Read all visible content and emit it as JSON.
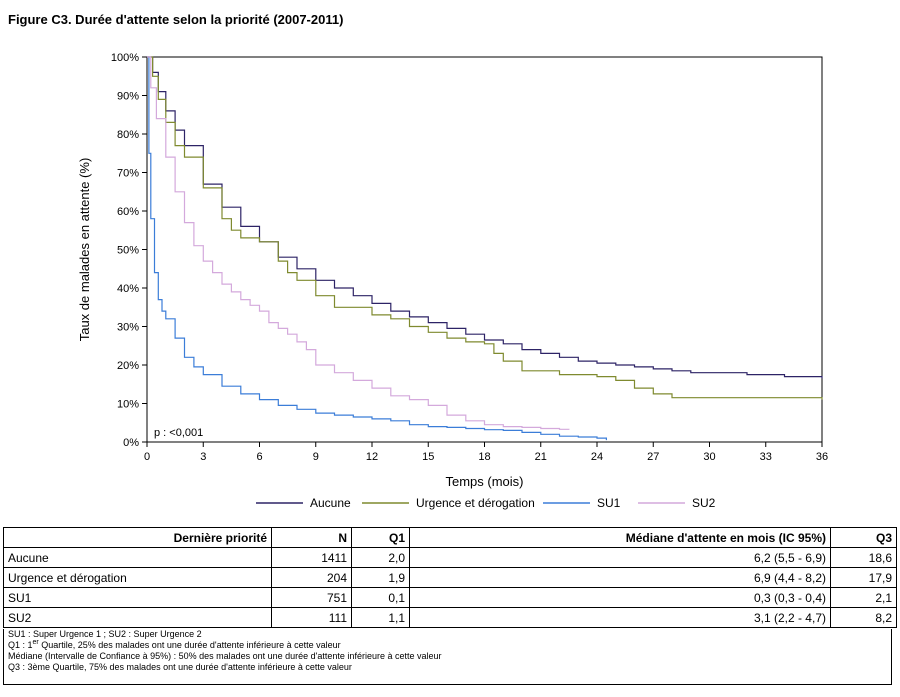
{
  "figure_title": "Figure C3. Durée d'attente selon la priorité (2007-2011)",
  "chart_data": {
    "type": "line",
    "step": true,
    "title": "",
    "xlabel": "Temps (mois)",
    "ylabel": "Taux de malades en attente (%)",
    "xlim": [
      0,
      36
    ],
    "ylim": [
      0,
      100
    ],
    "x_ticks": [
      0,
      3,
      6,
      9,
      12,
      15,
      18,
      21,
      24,
      27,
      30,
      33,
      36
    ],
    "y_ticks": [
      0,
      10,
      20,
      30,
      40,
      50,
      60,
      70,
      80,
      90,
      100
    ],
    "y_tick_labels": [
      "0%",
      "10%",
      "20%",
      "30%",
      "40%",
      "50%",
      "60%",
      "70%",
      "80%",
      "90%",
      "100%"
    ],
    "grid": false,
    "legend_position": "bottom",
    "annotation": "p : <0,001",
    "series": [
      {
        "name": "Aucune",
        "color": "#2d2366",
        "x": [
          0,
          0.3,
          0.6,
          1,
          1.5,
          2,
          3,
          4,
          5,
          6,
          7,
          8,
          9,
          10,
          11,
          12,
          13,
          14,
          15,
          16,
          17,
          18,
          19,
          20,
          21,
          22,
          23,
          24,
          25,
          26,
          27,
          28,
          29,
          30,
          31,
          32,
          33,
          34,
          35,
          36
        ],
        "values": [
          100,
          96,
          91,
          86,
          81,
          77,
          67,
          61,
          56,
          52,
          48,
          45,
          42,
          40,
          38,
          36,
          34,
          32.5,
          31,
          29.5,
          28,
          26.5,
          25.5,
          24,
          23,
          22,
          21,
          20.5,
          20,
          19.5,
          19,
          18.5,
          18,
          18,
          18,
          17.5,
          17.5,
          17,
          17,
          16.5
        ]
      },
      {
        "name": "Urgence et dérogation",
        "color": "#7f8a2f",
        "x": [
          0,
          0.3,
          0.6,
          1,
          1.5,
          2,
          3,
          4,
          4.5,
          5,
          6,
          7,
          7.5,
          8,
          9,
          10,
          11,
          12,
          13,
          14,
          15,
          16,
          17,
          18,
          18.5,
          19,
          20,
          21,
          22,
          23,
          24,
          25,
          26,
          27,
          28,
          30,
          32,
          34,
          36
        ],
        "values": [
          100,
          95,
          89,
          83,
          77,
          74,
          66,
          58,
          55,
          53,
          52,
          47,
          44,
          42,
          38,
          35,
          35,
          33,
          32,
          30,
          28.5,
          27,
          26,
          25.5,
          23,
          21,
          18.5,
          18.5,
          17.5,
          17.5,
          17,
          16,
          14,
          12.5,
          11.5,
          11.5,
          11.5,
          11.5,
          11
        ]
      },
      {
        "name": "SU1",
        "color": "#3b7dd8",
        "x": [
          0,
          0.1,
          0.2,
          0.4,
          0.6,
          0.8,
          1,
          1.5,
          2,
          2.5,
          3,
          4,
          5,
          6,
          7,
          8,
          9,
          10,
          11,
          12,
          13,
          14,
          15,
          16,
          17,
          18,
          19,
          20,
          21,
          22,
          23,
          24,
          24.5
        ],
        "values": [
          100,
          75,
          58,
          44,
          37,
          34,
          32,
          27,
          22,
          19.5,
          17.5,
          14.5,
          12.5,
          11,
          9.5,
          8.5,
          7.5,
          7,
          6.5,
          6,
          5.5,
          4.5,
          4,
          3.8,
          3.5,
          3.2,
          3,
          2.5,
          2,
          1.5,
          1.3,
          1,
          0.5
        ]
      },
      {
        "name": "SU2",
        "color": "#d4a9dc",
        "x": [
          0,
          0.2,
          0.5,
          1,
          1.5,
          2,
          2.5,
          3,
          3.5,
          4,
          4.5,
          5,
          5.5,
          6,
          6.5,
          7,
          7.5,
          8,
          8.5,
          9,
          10,
          11,
          12,
          13,
          14,
          15,
          16,
          17,
          18,
          19,
          20,
          21,
          22,
          22.5
        ],
        "values": [
          100,
          92,
          84,
          74,
          65,
          57,
          51,
          47,
          44,
          41,
          39,
          37,
          35.5,
          34,
          31,
          29.5,
          28,
          26,
          24,
          20,
          18,
          16,
          14,
          12,
          11,
          9.5,
          7,
          5.5,
          4.5,
          4,
          3.8,
          3.5,
          3.3,
          3.2
        ]
      }
    ]
  },
  "table": {
    "headers": [
      "Dernière priorité",
      "N",
      "Q1",
      "Médiane d'attente en mois (IC 95%)",
      "Q3"
    ],
    "rows": [
      [
        "Aucune",
        "1411",
        "2,0",
        "6,2 (5,5 - 6,9)",
        "18,6"
      ],
      [
        "Urgence et dérogation",
        "204",
        "1,9",
        "6,9 (4,4 - 8,2)",
        "17,9"
      ],
      [
        "SU1",
        "751",
        "0,1",
        "0,3 (0,3 - 0,4)",
        "2,1"
      ],
      [
        "SU2",
        "111",
        "1,1",
        "3,1 (2,2 - 4,7)",
        "8,2"
      ]
    ]
  },
  "footnotes": {
    "line1": "SU1 : Super Urgence 1 ; SU2 : Super Urgence 2",
    "line2_prefix": "Q1 : 1",
    "line2_sup": "er",
    "line2_rest": " Quartile, 25% des malades ont une durée d'attente inférieure à cette valeur",
    "line3": "Médiane (Intervalle de Confiance à 95%) : 50% des malades ont une durée d'attente inférieure à cette valeur",
    "line4": "Q3 : 3ème Quartile, 75% des malades ont une durée d'attente inférieure à cette valeur"
  }
}
